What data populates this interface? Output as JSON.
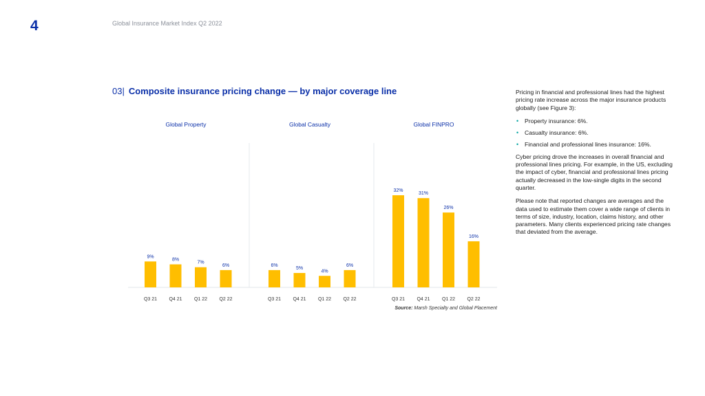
{
  "page_number": "4",
  "header_title": "Global Insurance Market Index Q2 2022",
  "figure": {
    "number": "03|",
    "title": "Composite insurance pricing change — by major coverage line"
  },
  "chart_data": {
    "type": "bar",
    "title": "Composite insurance pricing change — by major coverage line",
    "ylim": [
      0,
      35
    ],
    "unit": "%",
    "bar_color": "#ffbe00",
    "label_color": "#0a2fa8",
    "panels": [
      {
        "name": "Global Property",
        "categories": [
          "Q3 21",
          "Q4 21",
          "Q1 22",
          "Q2 22"
        ],
        "values": [
          9,
          8,
          7,
          6
        ]
      },
      {
        "name": "Global Casualty",
        "categories": [
          "Q3 21",
          "Q4 21",
          "Q1 22",
          "Q2 22"
        ],
        "values": [
          6,
          5,
          4,
          6
        ]
      },
      {
        "name": "Global FINPRO",
        "categories": [
          "Q3 21",
          "Q4 21",
          "Q1 22",
          "Q2 22"
        ],
        "values": [
          32,
          31,
          26,
          16
        ]
      }
    ]
  },
  "source": {
    "label": "Source:",
    "text": "Marsh Specialty and Global Placement"
  },
  "side": {
    "intro": "Pricing in financial and professional lines had the highest pricing rate increase across the major insurance products globally (see Figure 3):",
    "bullets": [
      "Property insurance: 6%.",
      "Casualty insurance: 6%.",
      "Financial and professional lines insurance: 16%."
    ],
    "para2": "Cyber pricing drove the increases in overall financial and professional lines pricing. For example, in the US, excluding the impact of cyber, financial and professional lines pricing actually decreased in the low-single digits in the second quarter.",
    "para3": "Please note that reported changes are averages and the data used to estimate them cover a wide range of clients in terms of size, industry, location, claims history, and other parameters. Many clients experienced pricing rate changes that deviated from the average."
  }
}
